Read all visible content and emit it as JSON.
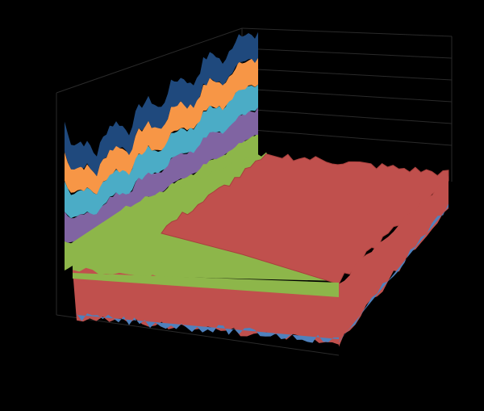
{
  "chart_data": {
    "type": "surface",
    "colors": [
      "#4f81bd",
      "#c0504d",
      "#8db64a",
      "#8064a2",
      "#4bacc6",
      "#f79646",
      "#1f497d"
    ]
  }
}
